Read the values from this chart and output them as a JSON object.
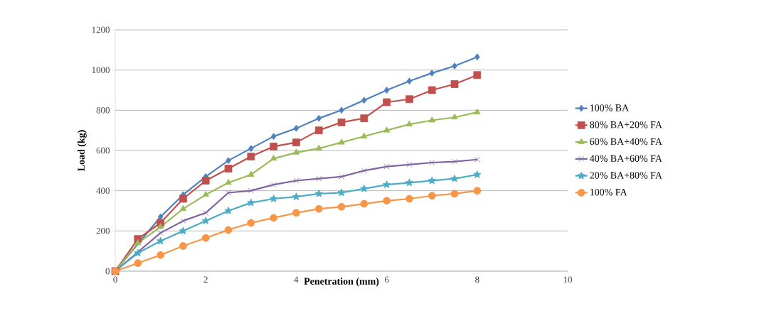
{
  "chart_data": {
    "type": "line",
    "xlabel": "Penetration (mm)",
    "ylabel": "Load (kg)",
    "x": [
      0,
      0.5,
      1,
      1.5,
      2,
      2.5,
      3,
      3.5,
      4,
      4.5,
      5,
      5.5,
      6,
      6.5,
      7,
      7.5,
      8
    ],
    "series": [
      {
        "name": "100% BA",
        "color": "#4f81bd",
        "marker": "diamond",
        "values": [
          0,
          null,
          270,
          380,
          470,
          550,
          610,
          670,
          710,
          760,
          800,
          850,
          900,
          945,
          985,
          1020,
          1065
        ]
      },
      {
        "name": "80% BA+20% FA",
        "color": "#c0504d",
        "marker": "square",
        "values": [
          0,
          160,
          240,
          360,
          450,
          510,
          570,
          620,
          640,
          700,
          740,
          760,
          840,
          855,
          900,
          930,
          975
        ]
      },
      {
        "name": "60% BA+40% FA",
        "color": "#9bbb59",
        "marker": "triangle",
        "values": [
          0,
          140,
          220,
          310,
          380,
          440,
          480,
          560,
          590,
          610,
          640,
          670,
          700,
          730,
          750,
          765,
          790
        ]
      },
      {
        "name": "40% BA+60% FA",
        "color": "#8064a2",
        "marker": "cross",
        "values": [
          0,
          null,
          190,
          250,
          290,
          390,
          400,
          430,
          450,
          460,
          470,
          500,
          520,
          530,
          540,
          545,
          555
        ]
      },
      {
        "name": "20% BA+80% FA",
        "color": "#4bacc6",
        "marker": "star",
        "values": [
          0,
          90,
          150,
          200,
          250,
          300,
          340,
          360,
          370,
          385,
          390,
          410,
          430,
          440,
          450,
          460,
          480
        ]
      },
      {
        "name": "100% FA",
        "color": "#f79646",
        "marker": "circle",
        "values": [
          0,
          40,
          80,
          125,
          165,
          205,
          240,
          265,
          290,
          310,
          320,
          335,
          350,
          360,
          375,
          385,
          400
        ]
      }
    ],
    "xlim": [
      0,
      10
    ],
    "xticks": [
      0,
      2,
      4,
      6,
      8,
      10
    ],
    "ylim": [
      0,
      1200
    ],
    "yticks": [
      0,
      200,
      400,
      600,
      800,
      1000,
      1200
    ],
    "grid": "y",
    "legend": "right"
  }
}
